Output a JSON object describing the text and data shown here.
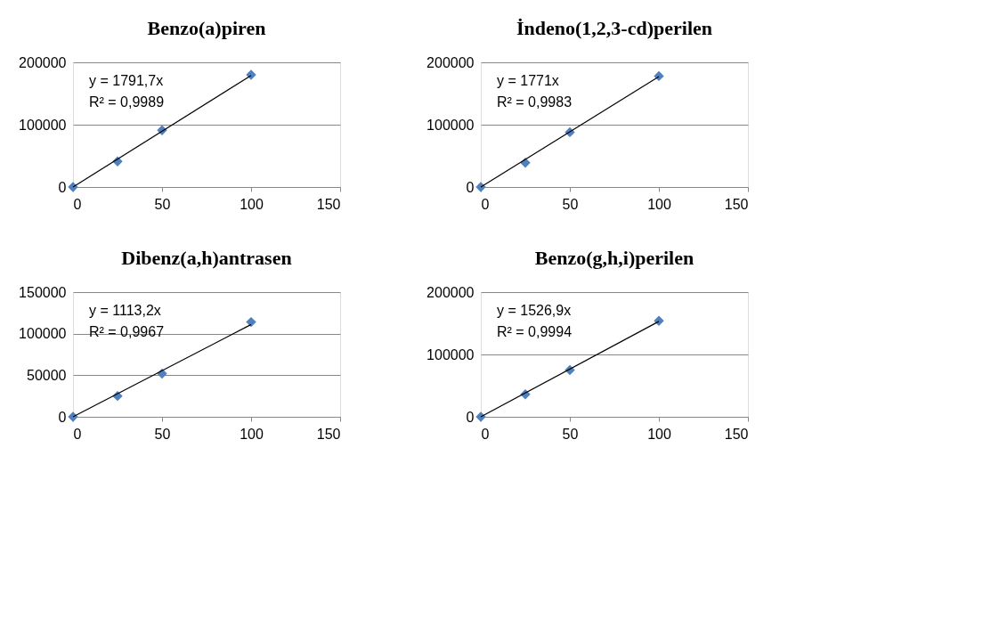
{
  "chart_data": [
    {
      "type": "scatter",
      "title": "Benzo(a)piren",
      "xlim": [
        0,
        150
      ],
      "xticks": [
        0,
        50,
        100,
        150
      ],
      "ylim": [
        0,
        200000
      ],
      "yticks": [
        0,
        100000,
        200000
      ],
      "grid": "y",
      "marker": "diamond",
      "series": [
        {
          "color": "#4f81bd",
          "x": [
            0,
            25,
            50,
            100
          ],
          "values": [
            0,
            41000,
            91000,
            180000
          ]
        },
        {
          "type": "line",
          "color": "#000000",
          "x": [
            0,
            100
          ],
          "values": [
            0,
            179000
          ],
          "marker": "none"
        }
      ],
      "annotations": [
        "y = 1791,7x",
        "R² = 0,9989"
      ]
    },
    {
      "type": "scatter",
      "title": "İndeno(1,2,3-cd)perilen",
      "xlim": [
        0,
        150
      ],
      "xticks": [
        0,
        50,
        100,
        150
      ],
      "ylim": [
        0,
        200000
      ],
      "yticks": [
        0,
        100000,
        200000
      ],
      "grid": "y",
      "marker": "diamond",
      "series": [
        {
          "color": "#4f81bd",
          "x": [
            0,
            25,
            50,
            100
          ],
          "values": [
            0,
            39000,
            88000,
            178000
          ]
        },
        {
          "type": "line",
          "color": "#000000",
          "x": [
            0,
            100
          ],
          "values": [
            0,
            177000
          ],
          "marker": "none"
        }
      ],
      "annotations": [
        "y = 1771x",
        "R² = 0,9983"
      ]
    },
    {
      "type": "scatter",
      "title": "Dibenz(a,h)antrasen",
      "xlim": [
        0,
        150
      ],
      "xticks": [
        0,
        50,
        100,
        150
      ],
      "ylim": [
        0,
        150000
      ],
      "yticks": [
        0,
        50000,
        100000,
        150000
      ],
      "grid": "y",
      "marker": "diamond",
      "series": [
        {
          "color": "#4f81bd",
          "x": [
            0,
            25,
            50,
            100
          ],
          "values": [
            0,
            25000,
            52000,
            114000
          ]
        },
        {
          "type": "line",
          "color": "#000000",
          "x": [
            0,
            100
          ],
          "values": [
            0,
            111000
          ],
          "marker": "none"
        }
      ],
      "annotations": [
        "y = 1113,2x",
        "R² = 0,9967"
      ]
    },
    {
      "type": "scatter",
      "title": "Benzo(g,h,i)perilen",
      "xlim": [
        0,
        150
      ],
      "xticks": [
        0,
        50,
        100,
        150
      ],
      "ylim": [
        0,
        200000
      ],
      "yticks": [
        0,
        100000,
        200000
      ],
      "grid": "y",
      "marker": "diamond",
      "series": [
        {
          "color": "#4f81bd",
          "x": [
            0,
            25,
            50,
            100
          ],
          "values": [
            0,
            36000,
            75000,
            154000
          ]
        },
        {
          "type": "line",
          "color": "#000000",
          "x": [
            0,
            100
          ],
          "values": [
            0,
            153000
          ],
          "marker": "none"
        }
      ],
      "annotations": [
        "y = 1526,9x",
        "R² = 0,9994"
      ]
    }
  ]
}
